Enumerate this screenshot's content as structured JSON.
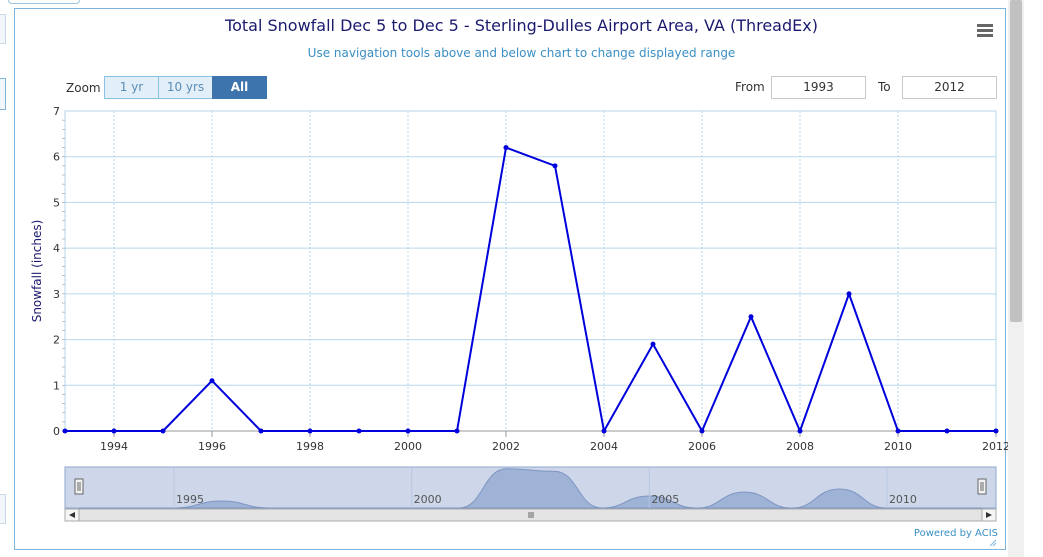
{
  "title": "Total Snowfall Dec 5 to Dec 5 - Sterling-Dulles Airport Area, VA (ThreadEx)",
  "subtitle": "Use navigation tools above and below chart to change displayed range",
  "zoom": {
    "label": "Zoom",
    "buttons": [
      "1 yr",
      "10 yrs",
      "All"
    ],
    "active": "All"
  },
  "range": {
    "from_label": "From",
    "from_value": "1993",
    "to_label": "To",
    "to_value": "2012"
  },
  "credits": "Powered by ACIS",
  "colors": {
    "line": "#0000dd",
    "grid": "#b7d7ee",
    "navigator_fill": "#9fb3d6",
    "navigator_bg": "#ced7ea"
  },
  "icons": {
    "menu": "hamburger-menu-icon"
  },
  "chart_data": {
    "type": "line",
    "title": "Total Snowfall Dec 5 to Dec 5 - Sterling-Dulles Airport Area, VA (ThreadEx)",
    "xlabel": "",
    "ylabel": "Snowfall (inches)",
    "xlim": [
      1993,
      2012
    ],
    "ylim": [
      0,
      7
    ],
    "x_ticks": [
      "1994",
      "1996",
      "1998",
      "2000",
      "2002",
      "2004",
      "2006",
      "2008",
      "2010",
      "2012"
    ],
    "y_ticks": [
      "0",
      "1",
      "2",
      "3",
      "4",
      "5",
      "6",
      "7"
    ],
    "navigator_ticks": [
      "1995",
      "2000",
      "2005",
      "2010"
    ],
    "grid": true,
    "legend": "none",
    "series": [
      {
        "x": [
          1993,
          1994,
          1995,
          1996,
          1997,
          1998,
          1999,
          2000,
          2001,
          2002,
          2003,
          2004,
          2005,
          2006,
          2007,
          2008,
          2009,
          2010,
          2011,
          2012
        ],
        "values": [
          0,
          0,
          0,
          1.1,
          0,
          0,
          0,
          0,
          0,
          6.2,
          5.8,
          0,
          1.9,
          0,
          2.5,
          0,
          3.0,
          0,
          0,
          0
        ]
      }
    ]
  }
}
